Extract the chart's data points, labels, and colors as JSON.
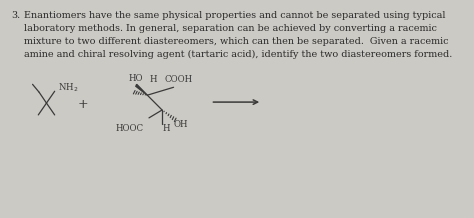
{
  "bg_color": "#cccac4",
  "text_color": "#2a2a2a",
  "question_number": "3.",
  "paragraph_lines": [
    "Enantiomers have the same physical properties and cannot be separated using typical",
    "laboratory methods. In general, separation can be achieved by converting a racemic",
    "mixture to two different diastereomers, which can then be separated.  Given a racemic",
    "amine and chiral resolving agent (tartaric acid), identify the two diastereomers formed."
  ],
  "font_size_text": 6.9,
  "font_size_struct": 6.2,
  "plus_fontsize": 9
}
